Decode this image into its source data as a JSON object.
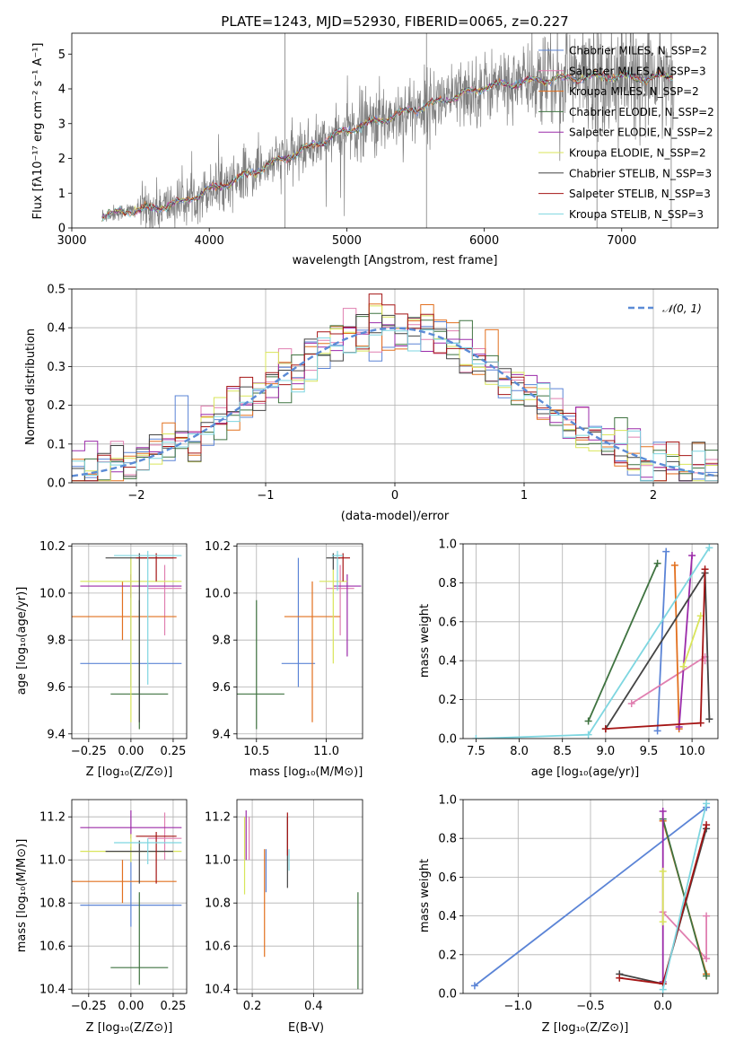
{
  "colors": {
    "chabrier_miles": "#5b84d6",
    "salpeter_miles": "#e07fb0",
    "kroupa_miles": "#e2701f",
    "chabrier_elodie": "#3f7340",
    "salpeter_elodie": "#9b2ba9",
    "kroupa_elodie": "#d9e55a",
    "chabrier_stelib": "#444444",
    "salpeter_stelib": "#a51515",
    "kroupa_stelib": "#7ed6e0",
    "data_gray": "#7f7f7f",
    "normal": "#5b8bd6",
    "grid": "#b0b0b0"
  },
  "chart_data": [
    {
      "id": "spectrum",
      "type": "line",
      "title": "PLATE=1243, MJD=52930, FIBERID=0065, z=0.227",
      "xlabel": "wavelength [Angstrom, rest frame]",
      "ylabel": "Flux [fλ10⁻¹⁷ erg cm⁻² s⁻¹ A⁻¹]",
      "xlim": [
        3000,
        7700
      ],
      "ylim": [
        0,
        5.6
      ],
      "xticks": [
        "3000",
        "4000",
        "5000",
        "6000",
        "7000"
      ],
      "yticks": [
        "0",
        "1",
        "2",
        "3",
        "4",
        "5"
      ],
      "legend": [
        "Chabrier MILES, N_SSP=2",
        "Salpeter MILES, N_SSP=3",
        "Kroupa MILES, N_SSP=2",
        "Chabrier ELODIE, N_SSP=2",
        "Salpeter ELODIE, N_SSP=2",
        "Kroupa ELODIE, N_SSP=2",
        "Chabrier STELIB, N_SSP=3",
        "Salpeter STELIB, N_SSP=3",
        "Kroupa STELIB, N_SSP=3"
      ],
      "legend_location": "upper-right",
      "continuum": {
        "x": [
          3220,
          3400,
          3600,
          3800,
          4000,
          4200,
          4400,
          4600,
          4800,
          5000,
          5200,
          5400,
          5600,
          5800,
          6000,
          6200,
          6400,
          6600,
          6800,
          7000,
          7200,
          7380
        ],
        "y": [
          0.35,
          0.5,
          0.55,
          0.75,
          1.1,
          1.4,
          1.75,
          2.1,
          2.45,
          2.8,
          3.05,
          3.3,
          3.55,
          3.8,
          4.05,
          4.15,
          4.25,
          4.3,
          4.35,
          4.35,
          4.3,
          4.4
        ]
      },
      "grid": false
    },
    {
      "id": "residuals",
      "type": "histogram",
      "xlabel": "(data-model)/error",
      "ylabel": "Normed distribution",
      "xlim": [
        -2.5,
        2.5
      ],
      "ylim": [
        0,
        0.5
      ],
      "xticks": [
        "−2",
        "−1",
        "0",
        "1",
        "2"
      ],
      "yticks": [
        "0.0",
        "0.1",
        "0.2",
        "0.3",
        "0.4",
        "0.5"
      ],
      "bin_width": 0.1,
      "legend": [
        "𝒩(0, 1)"
      ],
      "legend_location": "upper-right",
      "grid": true
    },
    {
      "id": "age_vs_Z",
      "type": "errorbar",
      "xlabel": "Z [log₁₀(Z/Z⊙)]",
      "ylabel": "age  [log₁₀(age/yr)]",
      "xlim": [
        -0.35,
        0.33
      ],
      "ylim": [
        9.38,
        10.21
      ],
      "xticks": [
        "−0.25",
        "0.00",
        "0.25"
      ],
      "yticks": [
        "9.4",
        "9.6",
        "9.8",
        "10.0",
        "10.2"
      ],
      "points": [
        {
          "series": "chabrier_miles",
          "x": 0.0,
          "y": 9.7,
          "xerr": 0.3,
          "yerr_lo": 0.1,
          "yerr_hi": 0.45
        },
        {
          "series": "salpeter_miles",
          "x": 0.2,
          "y": 10.02,
          "xerr": 0.1,
          "yerr_lo": 0.2,
          "yerr_hi": 0.1
        },
        {
          "series": "kroupa_miles",
          "x": -0.05,
          "y": 9.9,
          "xerr": 0.32,
          "yerr_lo": 0.1,
          "yerr_hi": 0.15
        },
        {
          "series": "chabrier_elodie",
          "x": 0.05,
          "y": 9.57,
          "xerr": 0.17,
          "yerr_lo": 0.15,
          "yerr_hi": 0.4
        },
        {
          "series": "salpeter_elodie",
          "x": 0.0,
          "y": 10.03,
          "xerr": 0.3,
          "yerr_lo": 0.05,
          "yerr_hi": 0.05
        },
        {
          "series": "kroupa_elodie",
          "x": 0.0,
          "y": 10.05,
          "xerr": 0.3,
          "yerr_lo": 0.6,
          "yerr_hi": 0.1
        },
        {
          "series": "chabrier_stelib",
          "x": 0.05,
          "y": 10.15,
          "xerr": 0.2,
          "yerr_lo": 0.7,
          "yerr_hi": 0.02
        },
        {
          "series": "salpeter_stelib",
          "x": 0.15,
          "y": 10.15,
          "xerr": 0.12,
          "yerr_lo": 0.1,
          "yerr_hi": 0.02
        },
        {
          "series": "kroupa_stelib",
          "x": 0.1,
          "y": 10.16,
          "xerr": 0.2,
          "yerr_lo": 0.55,
          "yerr_hi": 0.02
        }
      ],
      "grid": true
    },
    {
      "id": "age_vs_mass",
      "type": "errorbar",
      "xlabel": "mass [log₁₀(M/M⊙)]",
      "xlim": [
        10.36,
        11.26
      ],
      "ylim": [
        9.38,
        10.21
      ],
      "xticks": [
        "10.5",
        "11.0"
      ],
      "yticks": [
        "9.4",
        "9.6",
        "9.8",
        "10.0",
        "10.2"
      ],
      "points": [
        {
          "series": "chabrier_miles",
          "x": 10.8,
          "y": 9.7,
          "xerr": 0.12,
          "yerr_lo": 0.1,
          "yerr_hi": 0.45
        },
        {
          "series": "salpeter_miles",
          "x": 11.1,
          "y": 10.02,
          "xerr": 0.1,
          "yerr_lo": 0.2,
          "yerr_hi": 0.1
        },
        {
          "series": "kroupa_miles",
          "x": 10.9,
          "y": 9.9,
          "xerr": 0.2,
          "yerr_lo": 0.45,
          "yerr_hi": 0.15
        },
        {
          "series": "chabrier_elodie",
          "x": 10.5,
          "y": 9.57,
          "xerr": 0.2,
          "yerr_lo": 0.15,
          "yerr_hi": 0.4
        },
        {
          "series": "salpeter_elodie",
          "x": 11.15,
          "y": 10.03,
          "xerr": 0.1,
          "yerr_lo": 0.3,
          "yerr_hi": 0.05
        },
        {
          "series": "kroupa_elodie",
          "x": 11.05,
          "y": 10.05,
          "xerr": 0.1,
          "yerr_lo": 0.35,
          "yerr_hi": 0.05
        },
        {
          "series": "chabrier_stelib",
          "x": 11.05,
          "y": 10.15,
          "xerr": 0.05,
          "yerr_lo": 0.05,
          "yerr_hi": 0.02
        },
        {
          "series": "salpeter_stelib",
          "x": 11.12,
          "y": 10.15,
          "xerr": 0.05,
          "yerr_lo": 0.1,
          "yerr_hi": 0.02
        },
        {
          "series": "kroupa_stelib",
          "x": 11.08,
          "y": 10.16,
          "xerr": 0.04,
          "yerr_lo": 0.15,
          "yerr_hi": 0.02
        }
      ],
      "grid": true
    },
    {
      "id": "weight_vs_age",
      "type": "line",
      "xlabel": "age  [log₁₀(age/yr)]",
      "ylabel": "mass weight",
      "xlim": [
        7.35,
        10.3
      ],
      "ylim": [
        0,
        1.0
      ],
      "xticks": [
        "7.5",
        "8.0",
        "8.5",
        "9.0",
        "9.5",
        "10.0"
      ],
      "yticks": [
        "0.0",
        "0.2",
        "0.4",
        "0.6",
        "0.8",
        "1.0"
      ],
      "series": [
        {
          "key": "chabrier_miles",
          "x": [
            9.6,
            9.7
          ],
          "y": [
            0.04,
            0.96
          ]
        },
        {
          "key": "salpeter_miles",
          "x": [
            9.3,
            10.15,
            10.15
          ],
          "y": [
            0.18,
            0.42,
            0.4
          ]
        },
        {
          "key": "kroupa_miles",
          "x": [
            9.85,
            9.8
          ],
          "y": [
            0.05,
            0.89
          ]
        },
        {
          "key": "chabrier_elodie",
          "x": [
            8.8,
            9.6
          ],
          "y": [
            0.09,
            0.9
          ]
        },
        {
          "key": "salpeter_elodie",
          "x": [
            10.0,
            9.85
          ],
          "y": [
            0.94,
            0.06
          ]
        },
        {
          "key": "kroupa_elodie",
          "x": [
            9.9,
            10.1
          ],
          "y": [
            0.37,
            0.63
          ]
        },
        {
          "key": "chabrier_stelib",
          "x": [
            9.0,
            10.15,
            10.2
          ],
          "y": [
            0.05,
            0.85,
            0.1
          ]
        },
        {
          "key": "salpeter_stelib",
          "x": [
            9.0,
            10.1,
            10.15
          ],
          "y": [
            0.05,
            0.08,
            0.87
          ]
        },
        {
          "key": "kroupa_stelib",
          "x": [
            7.5,
            8.8,
            10.2
          ],
          "y": [
            0.0,
            0.02,
            0.98
          ]
        }
      ],
      "grid": true
    },
    {
      "id": "mass_vs_Z",
      "type": "errorbar",
      "xlabel": "Z [log₁₀(Z/Z⊙)]",
      "ylabel": "mass [log₁₀(M/M⊙)]",
      "xlim": [
        -0.35,
        0.33
      ],
      "ylim": [
        10.38,
        11.28
      ],
      "xticks": [
        "−0.25",
        "0.00",
        "0.25"
      ],
      "yticks": [
        "10.4",
        "10.6",
        "10.8",
        "11.0",
        "11.2"
      ],
      "points": [
        {
          "series": "chabrier_miles",
          "x": 0.0,
          "y": 10.79,
          "xerr": 0.3,
          "yerr_lo": 0.1,
          "yerr_hi": 0.27
        },
        {
          "series": "salpeter_miles",
          "x": 0.2,
          "y": 11.1,
          "xerr": 0.1,
          "yerr_lo": 0.1,
          "yerr_hi": 0.12
        },
        {
          "series": "kroupa_miles",
          "x": -0.05,
          "y": 10.9,
          "xerr": 0.32,
          "yerr_lo": 0.1,
          "yerr_hi": 0.1
        },
        {
          "series": "chabrier_elodie",
          "x": 0.05,
          "y": 10.5,
          "xerr": 0.17,
          "yerr_lo": 0.08,
          "yerr_hi": 0.35
        },
        {
          "series": "salpeter_elodie",
          "x": 0.0,
          "y": 11.15,
          "xerr": 0.3,
          "yerr_lo": 0.05,
          "yerr_hi": 0.08
        },
        {
          "series": "kroupa_elodie",
          "x": 0.0,
          "y": 11.04,
          "xerr": 0.3,
          "yerr_lo": 0.05,
          "yerr_hi": 0.08
        },
        {
          "series": "chabrier_stelib",
          "x": 0.05,
          "y": 11.04,
          "xerr": 0.2,
          "yerr_lo": 0.15,
          "yerr_hi": 0.05
        },
        {
          "series": "salpeter_stelib",
          "x": 0.15,
          "y": 11.11,
          "xerr": 0.12,
          "yerr_lo": 0.22,
          "yerr_hi": 0.02
        },
        {
          "series": "kroupa_stelib",
          "x": 0.1,
          "y": 11.08,
          "xerr": 0.2,
          "yerr_lo": 0.1,
          "yerr_hi": 0.02
        }
      ],
      "grid": true
    },
    {
      "id": "mass_vs_ebv",
      "type": "errorbar",
      "xlabel": "E(B-V)",
      "xlim": [
        0.15,
        0.56
      ],
      "ylim": [
        10.38,
        11.28
      ],
      "xticks": [
        "0.2",
        "0.4"
      ],
      "yticks": [
        "10.4",
        "10.6",
        "10.8",
        "11.0",
        "11.2"
      ],
      "points": [
        {
          "series": "chabrier_miles",
          "x": 0.245,
          "y": 10.95,
          "yerr_lo": 0.1,
          "yerr_hi": 0.1
        },
        {
          "series": "salpeter_miles",
          "x": 0.19,
          "y": 11.1,
          "yerr_lo": 0.1,
          "yerr_hi": 0.1
        },
        {
          "series": "kroupa_miles",
          "x": 0.24,
          "y": 10.85,
          "yerr_lo": 0.3,
          "yerr_hi": 0.2
        },
        {
          "series": "chabrier_elodie",
          "x": 0.545,
          "y": 10.6,
          "yerr_lo": 0.2,
          "yerr_hi": 0.25
        },
        {
          "series": "salpeter_elodie",
          "x": 0.18,
          "y": 11.1,
          "yerr_lo": 0.1,
          "yerr_hi": 0.13
        },
        {
          "series": "kroupa_elodie",
          "x": 0.175,
          "y": 11.0,
          "yerr_lo": 0.16,
          "yerr_hi": 0.2
        },
        {
          "series": "chabrier_stelib",
          "x": 0.315,
          "y": 11.05,
          "yerr_lo": 0.18,
          "yerr_hi": 0.15
        },
        {
          "series": "salpeter_stelib",
          "x": 0.315,
          "y": 11.1,
          "yerr_lo": 0.08,
          "yerr_hi": 0.12
        },
        {
          "series": "kroupa_stelib",
          "x": 0.32,
          "y": 11.0,
          "yerr_lo": 0.05,
          "yerr_hi": 0.05
        }
      ],
      "grid": true
    },
    {
      "id": "weight_vs_Z",
      "type": "line",
      "xlabel": "Z [log₁₀(Z/Z⊙)]",
      "ylabel": "mass weight",
      "xlim": [
        -1.38,
        0.38
      ],
      "ylim": [
        0,
        1.0
      ],
      "xticks": [
        "−1.0",
        "−0.5",
        "0.0"
      ],
      "yticks": [
        "0.0",
        "0.2",
        "0.4",
        "0.6",
        "0.8",
        "1.0"
      ],
      "series": [
        {
          "key": "chabrier_miles",
          "x": [
            -1.3,
            0.3
          ],
          "y": [
            0.04,
            0.96
          ]
        },
        {
          "key": "salpeter_miles",
          "x": [
            0.0,
            0.3,
            0.3
          ],
          "y": [
            0.42,
            0.18,
            0.4
          ]
        },
        {
          "key": "kroupa_miles",
          "x": [
            0.0,
            0.3
          ],
          "y": [
            0.89,
            0.1
          ]
        },
        {
          "key": "chabrier_elodie",
          "x": [
            0.0,
            0.3
          ],
          "y": [
            0.9,
            0.09
          ]
        },
        {
          "key": "salpeter_elodie",
          "x": [
            0.0,
            0.0
          ],
          "y": [
            0.94,
            0.06
          ]
        },
        {
          "key": "kroupa_elodie",
          "x": [
            0.0,
            0.0
          ],
          "y": [
            0.37,
            0.63
          ]
        },
        {
          "key": "chabrier_stelib",
          "x": [
            -0.3,
            0.0,
            0.3
          ],
          "y": [
            0.1,
            0.05,
            0.85
          ]
        },
        {
          "key": "salpeter_stelib",
          "x": [
            -0.3,
            0.0,
            0.3
          ],
          "y": [
            0.08,
            0.05,
            0.87
          ]
        },
        {
          "key": "kroupa_stelib",
          "x": [
            0.0,
            0.3
          ],
          "y": [
            0.02,
            0.98
          ]
        }
      ],
      "grid": true
    }
  ]
}
